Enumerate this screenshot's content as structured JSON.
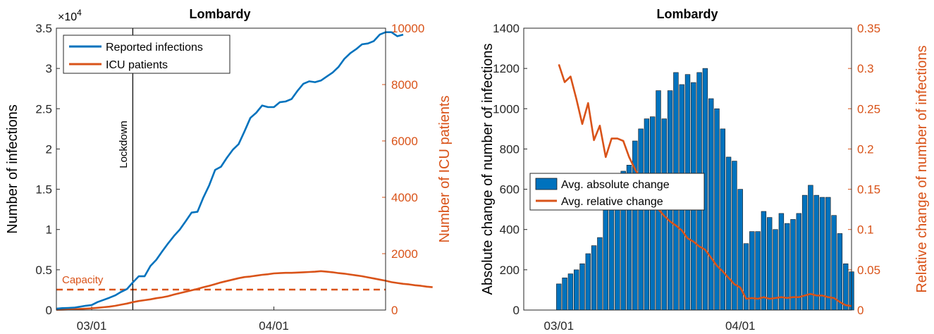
{
  "colors": {
    "blue": "#0072BD",
    "orange": "#D95319",
    "bar_edge": "#1a1a1a"
  },
  "chart_data": [
    {
      "type": "line",
      "title": "Lombardy",
      "ylabel": "Number of infections",
      "ylabel_right": "Number of ICU patients",
      "y_exponent_label": "×10",
      "y_exponent_power": "4",
      "xlim": [
        "2020-02-24",
        "2020-04-20"
      ],
      "x_ticks": [
        {
          "date": "2020-03-01",
          "label": "03/01"
        },
        {
          "date": "2020-04-01",
          "label": "04/01"
        }
      ],
      "ylim": [
        0,
        35000
      ],
      "y_ticks": [
        {
          "value": 0,
          "label": "0"
        },
        {
          "value": 5000,
          "label": "0.5"
        },
        {
          "value": 10000,
          "label": "1"
        },
        {
          "value": 15000,
          "label": "1.5"
        },
        {
          "value": 20000,
          "label": "2"
        },
        {
          "value": 25000,
          "label": "2.5"
        },
        {
          "value": 30000,
          "label": "3"
        },
        {
          "value": 35000,
          "label": "3.5"
        }
      ],
      "ylim_right": [
        0,
        10000
      ],
      "y_ticks_right": [
        {
          "value": 0,
          "label": "0"
        },
        {
          "value": 2000,
          "label": "2000"
        },
        {
          "value": 4000,
          "label": "4000"
        },
        {
          "value": 6000,
          "label": "6000"
        },
        {
          "value": 8000,
          "label": "8000"
        },
        {
          "value": 10000,
          "label": "10000"
        }
      ],
      "legend_placement": "top-left",
      "grid": false,
      "series": [
        {
          "name": "Reported infections",
          "color": "#0072BD",
          "axis": "left",
          "x_start": "2020-02-24",
          "values": [
            170,
            240,
            260,
            300,
            410,
            530,
            620,
            990,
            1250,
            1520,
            1820,
            2250,
            2610,
            3420,
            4190,
            4190,
            5470,
            6250,
            7280,
            8270,
            9200,
            10000,
            11030,
            12100,
            12200,
            13970,
            15500,
            17400,
            17800,
            18900,
            19900,
            20600,
            22200,
            23860,
            24500,
            25400,
            25200,
            25200,
            25800,
            25900,
            26200,
            27200,
            28100,
            28400,
            28300,
            28500,
            29000,
            29500,
            30200,
            31200,
            31900,
            32400,
            33000,
            33100,
            33400,
            34200,
            34500,
            34500,
            34000,
            34200
          ]
        },
        {
          "name": "ICU patients",
          "color": "#D95319",
          "axis": "right",
          "x_start": "2020-02-24",
          "values": [
            10,
            15,
            20,
            30,
            40,
            50,
            60,
            80,
            100,
            120,
            150,
            190,
            230,
            280,
            320,
            350,
            380,
            420,
            450,
            490,
            550,
            600,
            650,
            700,
            750,
            810,
            860,
            920,
            980,
            1030,
            1080,
            1130,
            1170,
            1190,
            1220,
            1250,
            1270,
            1300,
            1310,
            1320,
            1320,
            1330,
            1340,
            1350,
            1360,
            1380,
            1360,
            1340,
            1310,
            1290,
            1260,
            1230,
            1200,
            1160,
            1120,
            1080,
            1040,
            990,
            960,
            930,
            910,
            880,
            860,
            830,
            810
          ]
        }
      ],
      "reference_lines": [
        {
          "type": "vertical",
          "date": "2020-03-08",
          "label": "Lockdown",
          "color": "#000000"
        },
        {
          "type": "horizontal",
          "axis": "right",
          "value": 724,
          "label": "Capacity",
          "color": "#D95319",
          "style": "dashed"
        }
      ]
    },
    {
      "type": "bar",
      "title": "Lombardy",
      "ylabel": "Absolute change of number of infections",
      "ylabel_right": "Relative change of number of infections",
      "xlim": [
        "2020-02-24",
        "2020-04-20"
      ],
      "x_ticks": [
        {
          "date": "2020-03-01",
          "label": "03/01"
        },
        {
          "date": "2020-04-01",
          "label": "04/01"
        }
      ],
      "ylim": [
        0,
        1400
      ],
      "y_ticks": [
        {
          "value": 0,
          "label": "0"
        },
        {
          "value": 200,
          "label": "200"
        },
        {
          "value": 400,
          "label": "400"
        },
        {
          "value": 600,
          "label": "600"
        },
        {
          "value": 800,
          "label": "800"
        },
        {
          "value": 1000,
          "label": "1000"
        },
        {
          "value": 1200,
          "label": "1200"
        },
        {
          "value": 1400,
          "label": "1400"
        }
      ],
      "ylim_right": [
        0,
        0.35
      ],
      "y_ticks_right": [
        {
          "value": 0,
          "label": "0"
        },
        {
          "value": 0.05,
          "label": "0.05"
        },
        {
          "value": 0.1,
          "label": "0.1"
        },
        {
          "value": 0.15,
          "label": "0.15"
        },
        {
          "value": 0.2,
          "label": "0.2"
        },
        {
          "value": 0.25,
          "label": "0.25"
        },
        {
          "value": 0.3,
          "label": "0.3"
        },
        {
          "value": 0.35,
          "label": "0.35"
        }
      ],
      "legend_placement": "center-left",
      "grid": false,
      "series": [
        {
          "name": "Avg. absolute change",
          "color": "#0072BD",
          "axis": "left",
          "x_start": "2020-03-01",
          "values": [
            130,
            160,
            180,
            200,
            230,
            280,
            320,
            360,
            500,
            540,
            540,
            690,
            720,
            840,
            900,
            950,
            960,
            1090,
            950,
            1090,
            1180,
            1120,
            1170,
            1130,
            1180,
            1200,
            1050,
            1000,
            900,
            760,
            740,
            600,
            330,
            390,
            390,
            490,
            460,
            400,
            480,
            430,
            450,
            480,
            570,
            620,
            570,
            560,
            560,
            470,
            380,
            230,
            190
          ]
        },
        {
          "name": "Avg. relative change",
          "color": "#D95319",
          "axis": "right",
          "x_start": "2020-03-01",
          "values": [
            0.305,
            0.283,
            0.29,
            0.262,
            0.231,
            0.257,
            0.211,
            0.229,
            0.19,
            0.213,
            0.213,
            0.21,
            0.19,
            0.175,
            0.162,
            0.155,
            0.142,
            0.125,
            0.117,
            0.11,
            0.105,
            0.099,
            0.089,
            0.085,
            0.079,
            0.075,
            0.065,
            0.055,
            0.048,
            0.04,
            0.032,
            0.028,
            0.014,
            0.015,
            0.014,
            0.016,
            0.014,
            0.015,
            0.016,
            0.015,
            0.016,
            0.016,
            0.018,
            0.02,
            0.018,
            0.018,
            0.016,
            0.015,
            0.01,
            0.006,
            0.005
          ]
        }
      ]
    }
  ]
}
